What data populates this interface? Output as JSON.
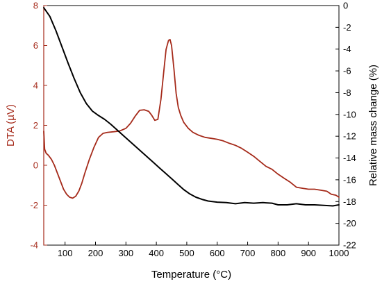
{
  "chart_data": {
    "type": "line",
    "xlabel": "Temperature (°C)",
    "ylabel_left": "DTA (µV)",
    "ylabel_right": "Relative mass change (%)",
    "xlim": [
      30,
      1000
    ],
    "ylim_left": [
      -4,
      8
    ],
    "ylim_right": [
      -22,
      0
    ],
    "x_ticks": [
      100,
      200,
      300,
      400,
      500,
      600,
      700,
      800,
      900,
      1000
    ],
    "y_left_ticks": [
      -4,
      -2,
      0,
      2,
      4,
      6,
      8
    ],
    "y_right_ticks": [
      -22,
      -20,
      -18,
      -16,
      -14,
      -12,
      -10,
      -8,
      -6,
      -4,
      -2,
      0
    ],
    "grid": false,
    "legend": "none",
    "colors": {
      "dta": "#a52a1a",
      "mass": "#000000",
      "left_axis": "#a52a1a",
      "right_axis": "#000000"
    },
    "series": [
      {
        "axis": "left",
        "x": [
          30,
          33,
          38,
          45,
          55,
          65,
          75,
          85,
          95,
          105,
          115,
          125,
          135,
          145,
          155,
          165,
          180,
          195,
          210,
          225,
          240,
          260,
          280,
          300,
          315,
          330,
          345,
          360,
          375,
          385,
          395,
          405,
          415,
          425,
          432,
          440,
          445,
          450,
          458,
          465,
          472,
          480,
          490,
          505,
          520,
          540,
          560,
          580,
          600,
          620,
          640,
          660,
          680,
          700,
          720,
          740,
          760,
          780,
          800,
          820,
          840,
          860,
          880,
          900,
          920,
          940,
          960,
          975,
          990,
          1000
        ],
        "y": [
          1.7,
          0.8,
          0.6,
          0.5,
          0.3,
          0.0,
          -0.4,
          -0.8,
          -1.2,
          -1.45,
          -1.6,
          -1.65,
          -1.55,
          -1.3,
          -0.9,
          -0.4,
          0.3,
          0.9,
          1.4,
          1.6,
          1.65,
          1.68,
          1.72,
          1.85,
          2.1,
          2.45,
          2.75,
          2.78,
          2.7,
          2.5,
          2.25,
          2.3,
          3.3,
          4.8,
          5.8,
          6.25,
          6.3,
          6.0,
          4.8,
          3.6,
          2.9,
          2.5,
          2.15,
          1.85,
          1.65,
          1.5,
          1.4,
          1.35,
          1.3,
          1.22,
          1.1,
          1.0,
          0.85,
          0.65,
          0.45,
          0.2,
          -0.05,
          -0.2,
          -0.45,
          -0.65,
          -0.85,
          -1.1,
          -1.15,
          -1.2,
          -1.2,
          -1.25,
          -1.3,
          -1.45,
          -1.5,
          -1.6
        ]
      },
      {
        "axis": "right",
        "x": [
          30,
          50,
          70,
          90,
          110,
          130,
          150,
          170,
          190,
          210,
          230,
          250,
          270,
          290,
          310,
          330,
          350,
          370,
          390,
          410,
          430,
          450,
          470,
          490,
          510,
          530,
          550,
          570,
          600,
          630,
          660,
          690,
          720,
          750,
          780,
          800,
          830,
          860,
          890,
          920,
          950,
          980,
          1000
        ],
        "y": [
          -0.2,
          -1.0,
          -2.3,
          -3.8,
          -5.3,
          -6.7,
          -8.0,
          -9.0,
          -9.7,
          -10.1,
          -10.45,
          -10.9,
          -11.4,
          -11.9,
          -12.4,
          -12.9,
          -13.4,
          -13.9,
          -14.4,
          -14.9,
          -15.4,
          -15.9,
          -16.4,
          -16.9,
          -17.3,
          -17.6,
          -17.8,
          -17.95,
          -18.05,
          -18.1,
          -18.2,
          -18.1,
          -18.15,
          -18.1,
          -18.15,
          -18.3,
          -18.3,
          -18.2,
          -18.3,
          -18.3,
          -18.35,
          -18.4,
          -18.3
        ]
      }
    ]
  }
}
